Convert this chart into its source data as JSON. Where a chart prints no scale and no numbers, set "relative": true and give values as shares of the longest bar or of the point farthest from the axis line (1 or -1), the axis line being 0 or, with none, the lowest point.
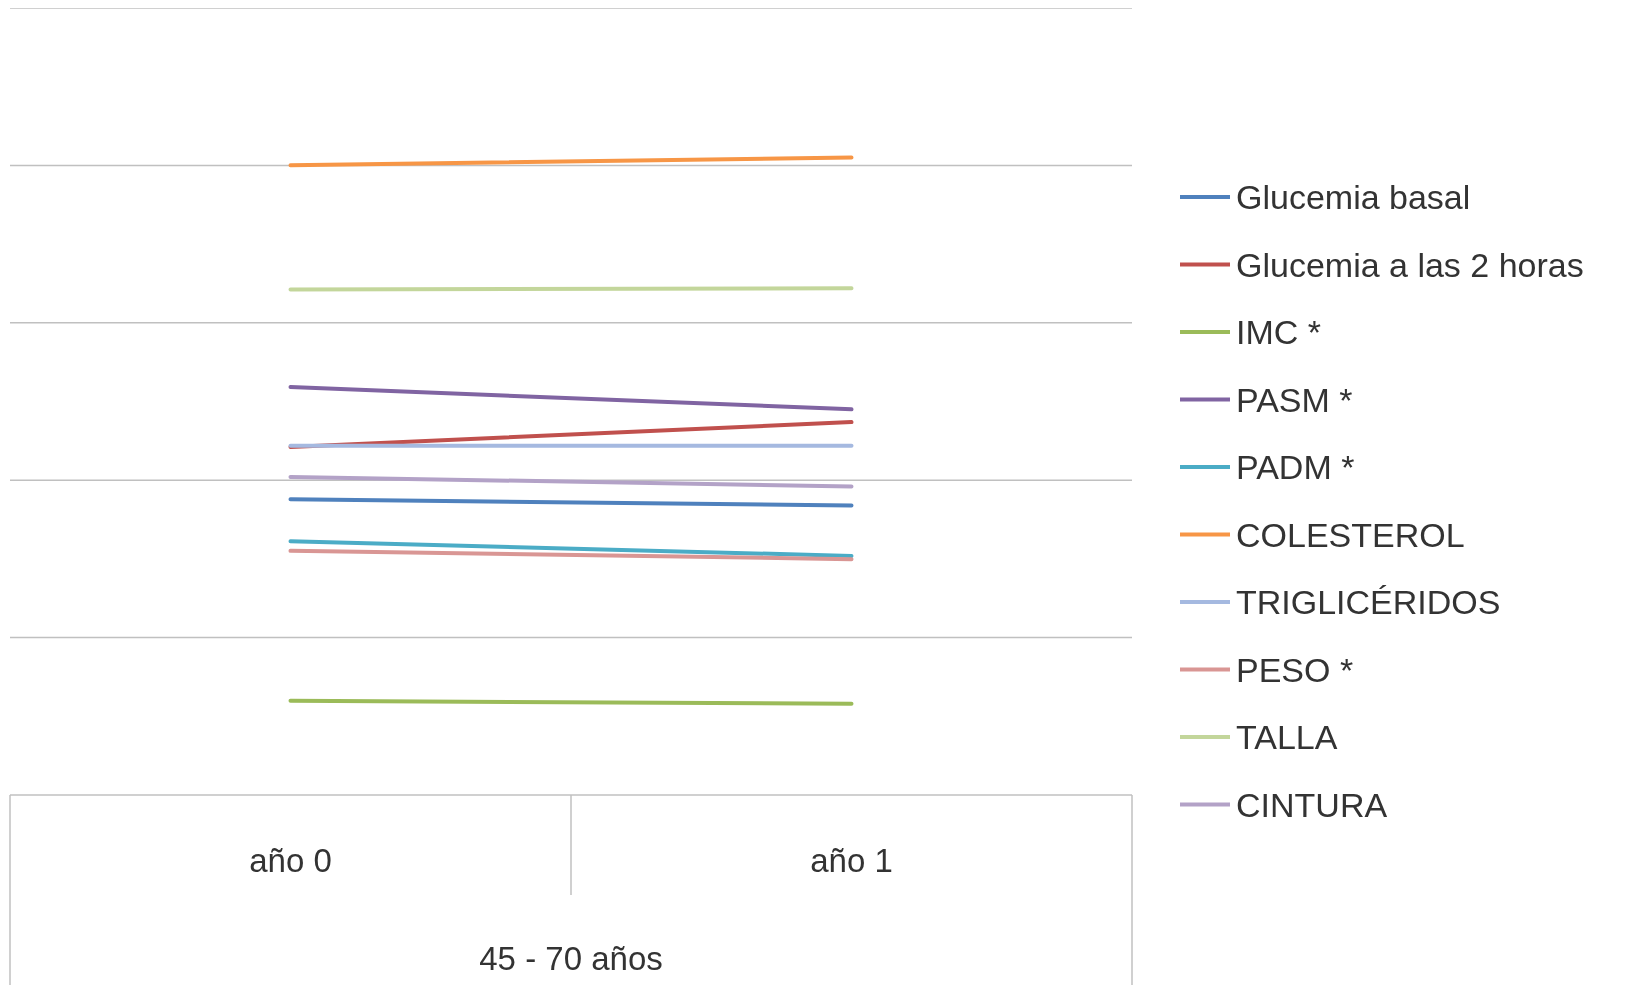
{
  "chart_data": {
    "type": "line",
    "relative": true,
    "categories": [
      "año 0",
      "año 1"
    ],
    "xlabel": "45 - 70 años",
    "grid": true,
    "legend": "right",
    "marker": "none",
    "series": [
      {
        "name": "Glucemia basal",
        "color": "#4f81bd",
        "values": [
          0.464,
          0.454
        ]
      },
      {
        "name": "Glucemia a las 2 horas",
        "color": "#c0504d",
        "values": [
          0.546,
          0.585
        ]
      },
      {
        "name": "IMC *",
        "color": "#9bbb59",
        "values": [
          0.148,
          0.143
        ]
      },
      {
        "name": "PASM *",
        "color": "#8064a2",
        "values": [
          0.64,
          0.605
        ]
      },
      {
        "name": "PADM *",
        "color": "#4bacc6",
        "values": [
          0.398,
          0.375
        ]
      },
      {
        "name": "COLESTEROL",
        "color": "#f79646",
        "values": [
          0.988,
          1
        ]
      },
      {
        "name": "TRIGLICÉRIDOS",
        "color": "#a5b9e0",
        "values": [
          0.548,
          0.548
        ]
      },
      {
        "name": "PESO *",
        "color": "#d99694",
        "values": [
          0.383,
          0.37
        ]
      },
      {
        "name": "TALLA",
        "color": "#c3d69b",
        "values": [
          0.793,
          0.795
        ]
      },
      {
        "name": "CINTURA",
        "color": "#b3a2c7",
        "values": [
          0.499,
          0.484
        ]
      }
    ]
  }
}
